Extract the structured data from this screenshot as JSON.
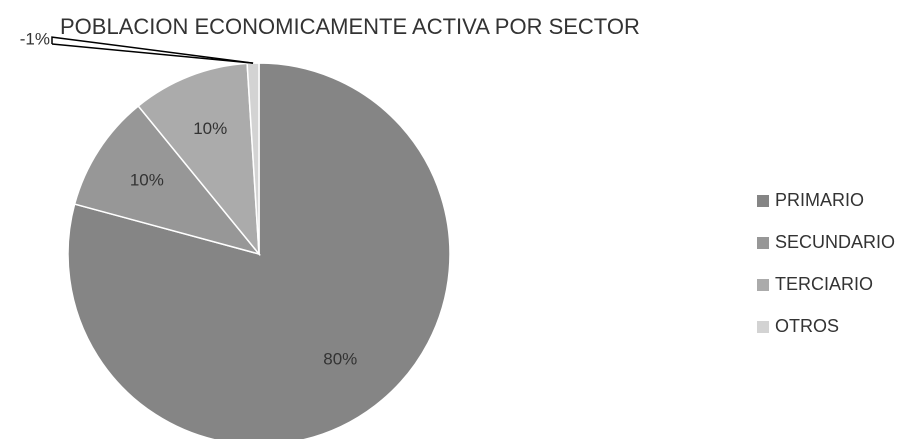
{
  "chart_data": {
    "type": "pie",
    "title": "POBLACION ECONOMICAMENTE ACTIVA POR SECTOR",
    "categories": [
      "PRIMARIO",
      "SECUNDARIO",
      "TERCIARIO",
      "OTROS"
    ],
    "values": [
      80,
      10,
      10,
      -1
    ],
    "value_labels": [
      "80%",
      "10%",
      "10%",
      "-1%"
    ],
    "colors": [
      "#858585",
      "#979797",
      "#ababab",
      "#d3d3d3"
    ],
    "legend": "right"
  }
}
